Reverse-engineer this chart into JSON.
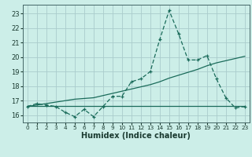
{
  "title": "",
  "xlabel": "Humidex (Indice chaleur)",
  "bg_color": "#cceee8",
  "grid_color": "#aacccc",
  "line_color": "#1a6b5a",
  "xlim": [
    -0.5,
    23.5
  ],
  "ylim": [
    15.5,
    23.6
  ],
  "yticks": [
    16,
    17,
    18,
    19,
    20,
    21,
    22,
    23
  ],
  "xticks": [
    0,
    1,
    2,
    3,
    4,
    5,
    6,
    7,
    8,
    9,
    10,
    11,
    12,
    13,
    14,
    15,
    16,
    17,
    18,
    19,
    20,
    21,
    22,
    23
  ],
  "x": [
    0,
    1,
    2,
    3,
    4,
    5,
    6,
    7,
    8,
    9,
    10,
    11,
    12,
    13,
    14,
    15,
    16,
    17,
    18,
    19,
    20,
    21,
    22,
    23
  ],
  "y_main": [
    16.6,
    16.8,
    16.7,
    16.6,
    16.2,
    15.9,
    16.4,
    15.9,
    16.6,
    17.3,
    17.3,
    18.3,
    18.5,
    19.0,
    21.2,
    23.2,
    21.6,
    19.8,
    19.8,
    20.1,
    18.5,
    17.2,
    16.5,
    16.6
  ],
  "y_trend_up": [
    16.6,
    16.7,
    16.8,
    16.9,
    17.0,
    17.1,
    17.15,
    17.2,
    17.35,
    17.5,
    17.65,
    17.8,
    17.95,
    18.1,
    18.3,
    18.55,
    18.75,
    18.95,
    19.15,
    19.4,
    19.6,
    19.75,
    19.9,
    20.05
  ],
  "y_flat": [
    16.65,
    16.65,
    16.65,
    16.65,
    16.65,
    16.65,
    16.65,
    16.65,
    16.65,
    16.65,
    16.65,
    16.65,
    16.65,
    16.65,
    16.65,
    16.65,
    16.65,
    16.65,
    16.65,
    16.65,
    16.65,
    16.65,
    16.65,
    16.65
  ]
}
